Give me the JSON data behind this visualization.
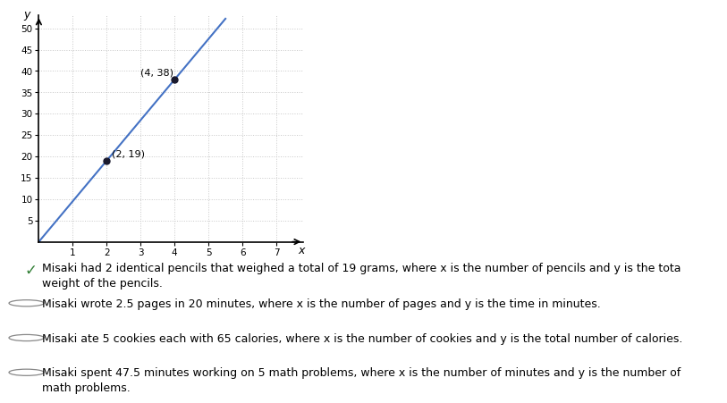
{
  "points": [
    [
      2,
      19
    ],
    [
      4,
      38
    ]
  ],
  "point_labels": [
    "(2, 19)",
    "(4, 38)"
  ],
  "line_color": "#4472C4",
  "point_color": "#1a1a2e",
  "xlim": [
    0,
    7.8
  ],
  "ylim": [
    0,
    53
  ],
  "xticks": [
    1,
    2,
    3,
    4,
    5,
    6,
    7
  ],
  "yticks": [
    5,
    10,
    15,
    20,
    25,
    30,
    35,
    40,
    45,
    50
  ],
  "xlabel": "x",
  "ylabel": "y",
  "grid_color": "#c8c8c8",
  "bg_color": "#ffffff",
  "slope": 9.5,
  "intercept": 0,
  "answer_options": [
    {
      "text": "Misaki had 2 identical pencils that weighed a total of 19 grams, where x is the number of pencils and y is the tota\nweight of the pencils.",
      "correct": true
    },
    {
      "text": "Misaki wrote 2.5 pages in 20 minutes, where x is the number of pages and y is the time in minutes.",
      "correct": false
    },
    {
      "text": "Misaki ate 5 cookies each with 65 calories, where x is the number of cookies and y is the total number of calories.",
      "correct": false
    },
    {
      "text": "Misaki spent 47.5 minutes working on 5 math problems, where x is the number of minutes and y is the number of\nmath problems.",
      "correct": false
    }
  ]
}
